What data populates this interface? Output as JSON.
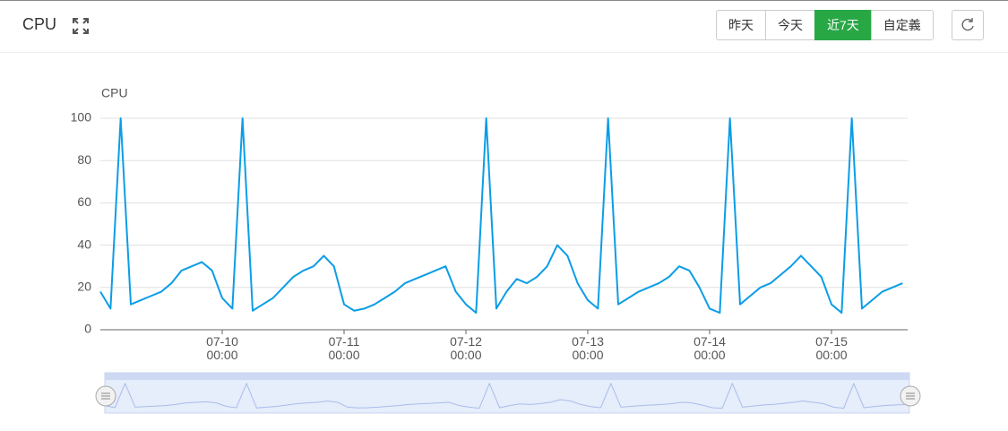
{
  "header": {
    "title": "CPU",
    "buttons": [
      "昨天",
      "今天",
      "近7天",
      "自定義"
    ],
    "active_button": 2
  },
  "chart_data": {
    "type": "line",
    "y_label": "CPU",
    "color": "#0b9de6",
    "grid": true,
    "xlim": [
      "07-09 00:00",
      "07-15 15:00"
    ],
    "ylim": [
      0,
      100
    ],
    "yticks": [
      0,
      20,
      40,
      60,
      80,
      100
    ],
    "xticks": [
      {
        "value": "07-10 00:00",
        "label": "07-10\n00:00"
      },
      {
        "value": "07-11 00:00",
        "label": "07-11\n00:00"
      },
      {
        "value": "07-12 00:00",
        "label": "07-12\n00:00"
      },
      {
        "value": "07-13 00:00",
        "label": "07-13\n00:00"
      },
      {
        "value": "07-14 00:00",
        "label": "07-14\n00:00"
      },
      {
        "value": "07-15 00:00",
        "label": "07-15\n00:00"
      }
    ],
    "x": [
      "07-09 00:00",
      "07-09 02:00",
      "07-09 04:00",
      "07-09 06:00",
      "07-09 08:00",
      "07-09 10:00",
      "07-09 12:00",
      "07-09 14:00",
      "07-09 16:00",
      "07-09 18:00",
      "07-09 20:00",
      "07-09 22:00",
      "07-10 00:00",
      "07-10 02:00",
      "07-10 04:00",
      "07-10 06:00",
      "07-10 08:00",
      "07-10 10:00",
      "07-10 12:00",
      "07-10 14:00",
      "07-10 16:00",
      "07-10 18:00",
      "07-10 20:00",
      "07-10 22:00",
      "07-11 00:00",
      "07-11 02:00",
      "07-11 04:00",
      "07-11 06:00",
      "07-11 08:00",
      "07-11 10:00",
      "07-11 12:00",
      "07-11 14:00",
      "07-11 16:00",
      "07-11 18:00",
      "07-11 20:00",
      "07-11 22:00",
      "07-12 00:00",
      "07-12 02:00",
      "07-12 04:00",
      "07-12 06:00",
      "07-12 08:00",
      "07-12 10:00",
      "07-12 12:00",
      "07-12 14:00",
      "07-12 16:00",
      "07-12 18:00",
      "07-12 20:00",
      "07-12 22:00",
      "07-13 00:00",
      "07-13 02:00",
      "07-13 04:00",
      "07-13 06:00",
      "07-13 08:00",
      "07-13 10:00",
      "07-13 12:00",
      "07-13 14:00",
      "07-13 16:00",
      "07-13 18:00",
      "07-13 20:00",
      "07-13 22:00",
      "07-14 00:00",
      "07-14 02:00",
      "07-14 04:00",
      "07-14 06:00",
      "07-14 08:00",
      "07-14 10:00",
      "07-14 12:00",
      "07-14 14:00",
      "07-14 16:00",
      "07-14 18:00",
      "07-14 20:00",
      "07-14 22:00",
      "07-15 00:00",
      "07-15 02:00",
      "07-15 04:00",
      "07-15 06:00",
      "07-15 08:00",
      "07-15 10:00",
      "07-15 12:00",
      "07-15 14:00"
    ],
    "values": [
      18,
      10,
      100,
      12,
      14,
      16,
      18,
      22,
      28,
      30,
      32,
      28,
      15,
      10,
      100,
      9,
      12,
      15,
      20,
      25,
      28,
      30,
      35,
      30,
      12,
      9,
      10,
      12,
      15,
      18,
      22,
      24,
      26,
      28,
      30,
      18,
      12,
      8,
      100,
      10,
      18,
      24,
      22,
      25,
      30,
      40,
      35,
      22,
      14,
      10,
      100,
      12,
      15,
      18,
      20,
      22,
      25,
      30,
      28,
      20,
      10,
      8,
      100,
      12,
      16,
      20,
      22,
      26,
      30,
      35,
      30,
      25,
      12,
      8,
      100,
      10,
      14,
      18,
      20,
      22
    ]
  }
}
